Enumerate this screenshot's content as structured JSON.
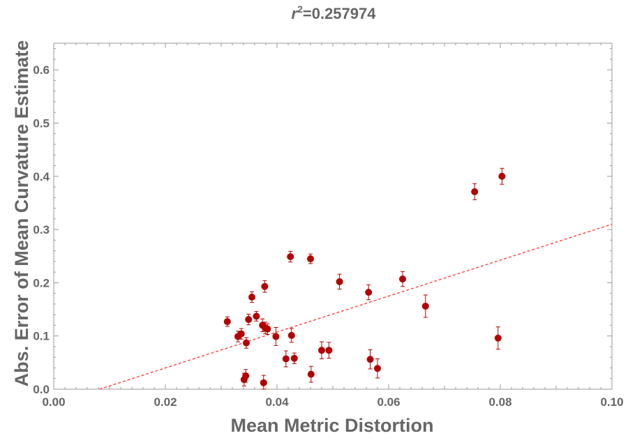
{
  "chart_data": {
    "type": "scatter",
    "title_var": "r",
    "title_sup": "2",
    "title_value": "=0.257974",
    "xlabel": "Mean Metric Distortion",
    "ylabel": "Abs. Error of Mean Curvature Estimate",
    "xlim": [
      0,
      0.1
    ],
    "ylim": [
      0,
      0.65
    ],
    "xticks": [
      0.0,
      0.02,
      0.04,
      0.06,
      0.08,
      0.1
    ],
    "xtick_labels": [
      "0.00",
      "0.02",
      "0.04",
      "0.06",
      "0.08",
      "0.10"
    ],
    "yticks": [
      0.0,
      0.1,
      0.2,
      0.3,
      0.4,
      0.5,
      0.6
    ],
    "ytick_labels": [
      "0.0",
      "0.1",
      "0.2",
      "0.3",
      "0.4",
      "0.5",
      "0.6"
    ],
    "point_color": "#b30000",
    "fit_color": "#ff4040",
    "points": [
      {
        "x": 0.0311,
        "y": 0.127,
        "err": 0.009
      },
      {
        "x": 0.033,
        "y": 0.099,
        "err": 0.01
      },
      {
        "x": 0.0336,
        "y": 0.104,
        "err": 0.01
      },
      {
        "x": 0.0341,
        "y": 0.018,
        "err": 0.012
      },
      {
        "x": 0.0344,
        "y": 0.025,
        "err": 0.012
      },
      {
        "x": 0.0345,
        "y": 0.087,
        "err": 0.01
      },
      {
        "x": 0.0349,
        "y": 0.131,
        "err": 0.01
      },
      {
        "x": 0.0355,
        "y": 0.173,
        "err": 0.01
      },
      {
        "x": 0.0363,
        "y": 0.137,
        "err": 0.009
      },
      {
        "x": 0.0374,
        "y": 0.12,
        "err": 0.012
      },
      {
        "x": 0.0376,
        "y": 0.012,
        "err": 0.014
      },
      {
        "x": 0.0378,
        "y": 0.193,
        "err": 0.011
      },
      {
        "x": 0.0379,
        "y": 0.115,
        "err": 0.011
      },
      {
        "x": 0.0383,
        "y": 0.113,
        "err": 0.01
      },
      {
        "x": 0.0398,
        "y": 0.099,
        "err": 0.017
      },
      {
        "x": 0.0416,
        "y": 0.057,
        "err": 0.015
      },
      {
        "x": 0.0424,
        "y": 0.249,
        "err": 0.01
      },
      {
        "x": 0.0426,
        "y": 0.101,
        "err": 0.013
      },
      {
        "x": 0.0431,
        "y": 0.058,
        "err": 0.01
      },
      {
        "x": 0.046,
        "y": 0.245,
        "err": 0.009
      },
      {
        "x": 0.0461,
        "y": 0.028,
        "err": 0.015
      },
      {
        "x": 0.048,
        "y": 0.073,
        "err": 0.016
      },
      {
        "x": 0.0493,
        "y": 0.073,
        "err": 0.015
      },
      {
        "x": 0.0512,
        "y": 0.202,
        "err": 0.014
      },
      {
        "x": 0.0564,
        "y": 0.182,
        "err": 0.014
      },
      {
        "x": 0.0567,
        "y": 0.056,
        "err": 0.018
      },
      {
        "x": 0.058,
        "y": 0.039,
        "err": 0.018
      },
      {
        "x": 0.0625,
        "y": 0.207,
        "err": 0.014
      },
      {
        "x": 0.0666,
        "y": 0.156,
        "err": 0.021
      },
      {
        "x": 0.0754,
        "y": 0.371,
        "err": 0.015
      },
      {
        "x": 0.0796,
        "y": 0.096,
        "err": 0.021
      },
      {
        "x": 0.0803,
        "y": 0.4,
        "err": 0.015
      }
    ],
    "fit_line": {
      "x0": 0.0082,
      "y0": 0.0,
      "x1": 0.1,
      "y1": 0.31
    }
  }
}
